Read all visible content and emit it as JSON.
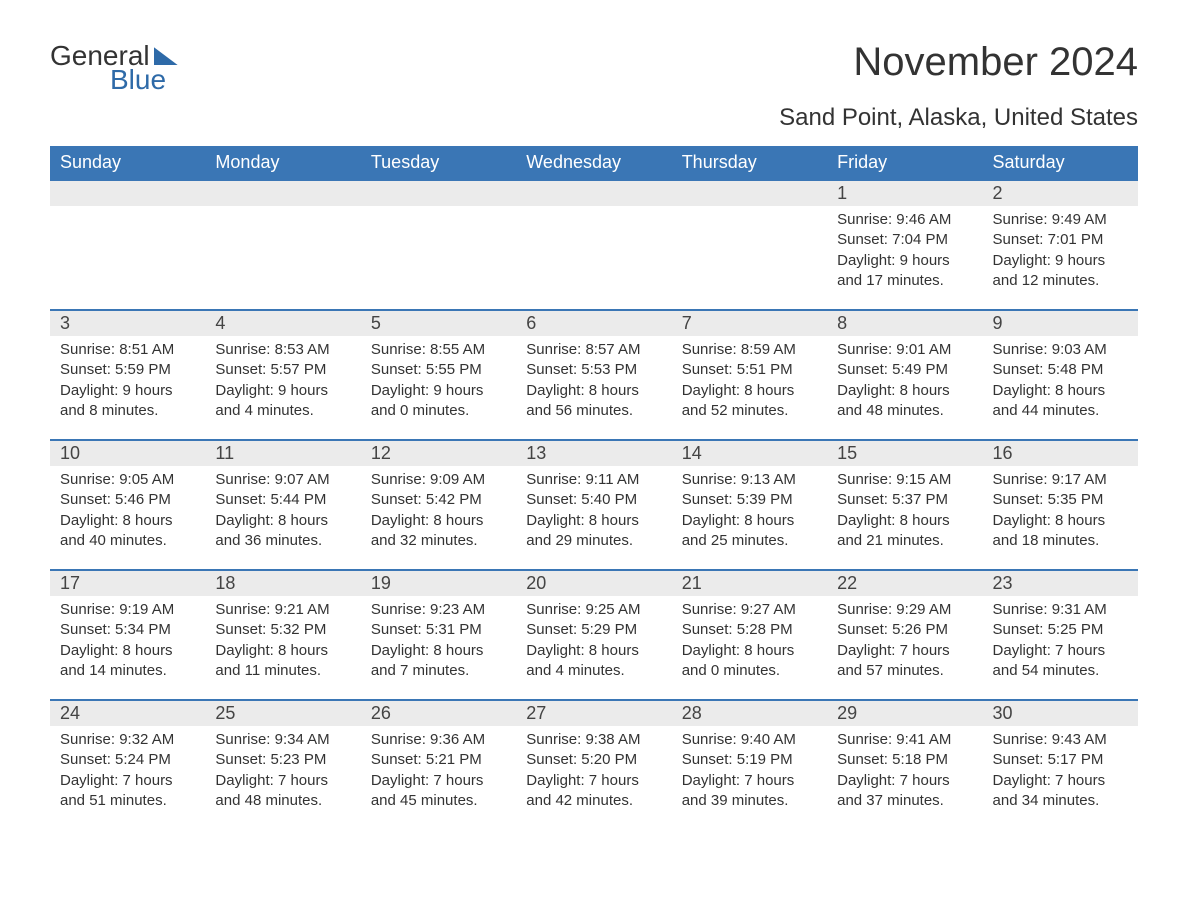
{
  "logo": {
    "text1": "General",
    "text2": "Blue",
    "accent_color": "#2e6aa8"
  },
  "title": "November 2024",
  "location": "Sand Point, Alaska, United States",
  "header_bg": "#3a76b5",
  "header_fg": "#ffffff",
  "daynum_bg": "#ebebeb",
  "row_border": "#3a76b5",
  "daylabels": [
    "Sunday",
    "Monday",
    "Tuesday",
    "Wednesday",
    "Thursday",
    "Friday",
    "Saturday"
  ],
  "weeks": [
    [
      null,
      null,
      null,
      null,
      null,
      {
        "n": "1",
        "sr": "9:46 AM",
        "ss": "7:04 PM",
        "dh": "9",
        "dm": "17"
      },
      {
        "n": "2",
        "sr": "9:49 AM",
        "ss": "7:01 PM",
        "dh": "9",
        "dm": "12"
      }
    ],
    [
      {
        "n": "3",
        "sr": "8:51 AM",
        "ss": "5:59 PM",
        "dh": "9",
        "dm": "8"
      },
      {
        "n": "4",
        "sr": "8:53 AM",
        "ss": "5:57 PM",
        "dh": "9",
        "dm": "4"
      },
      {
        "n": "5",
        "sr": "8:55 AM",
        "ss": "5:55 PM",
        "dh": "9",
        "dm": "0"
      },
      {
        "n": "6",
        "sr": "8:57 AM",
        "ss": "5:53 PM",
        "dh": "8",
        "dm": "56"
      },
      {
        "n": "7",
        "sr": "8:59 AM",
        "ss": "5:51 PM",
        "dh": "8",
        "dm": "52"
      },
      {
        "n": "8",
        "sr": "9:01 AM",
        "ss": "5:49 PM",
        "dh": "8",
        "dm": "48"
      },
      {
        "n": "9",
        "sr": "9:03 AM",
        "ss": "5:48 PM",
        "dh": "8",
        "dm": "44"
      }
    ],
    [
      {
        "n": "10",
        "sr": "9:05 AM",
        "ss": "5:46 PM",
        "dh": "8",
        "dm": "40"
      },
      {
        "n": "11",
        "sr": "9:07 AM",
        "ss": "5:44 PM",
        "dh": "8",
        "dm": "36"
      },
      {
        "n": "12",
        "sr": "9:09 AM",
        "ss": "5:42 PM",
        "dh": "8",
        "dm": "32"
      },
      {
        "n": "13",
        "sr": "9:11 AM",
        "ss": "5:40 PM",
        "dh": "8",
        "dm": "29"
      },
      {
        "n": "14",
        "sr": "9:13 AM",
        "ss": "5:39 PM",
        "dh": "8",
        "dm": "25"
      },
      {
        "n": "15",
        "sr": "9:15 AM",
        "ss": "5:37 PM",
        "dh": "8",
        "dm": "21"
      },
      {
        "n": "16",
        "sr": "9:17 AM",
        "ss": "5:35 PM",
        "dh": "8",
        "dm": "18"
      }
    ],
    [
      {
        "n": "17",
        "sr": "9:19 AM",
        "ss": "5:34 PM",
        "dh": "8",
        "dm": "14"
      },
      {
        "n": "18",
        "sr": "9:21 AM",
        "ss": "5:32 PM",
        "dh": "8",
        "dm": "11"
      },
      {
        "n": "19",
        "sr": "9:23 AM",
        "ss": "5:31 PM",
        "dh": "8",
        "dm": "7"
      },
      {
        "n": "20",
        "sr": "9:25 AM",
        "ss": "5:29 PM",
        "dh": "8",
        "dm": "4"
      },
      {
        "n": "21",
        "sr": "9:27 AM",
        "ss": "5:28 PM",
        "dh": "8",
        "dm": "0"
      },
      {
        "n": "22",
        "sr": "9:29 AM",
        "ss": "5:26 PM",
        "dh": "7",
        "dm": "57"
      },
      {
        "n": "23",
        "sr": "9:31 AM",
        "ss": "5:25 PM",
        "dh": "7",
        "dm": "54"
      }
    ],
    [
      {
        "n": "24",
        "sr": "9:32 AM",
        "ss": "5:24 PM",
        "dh": "7",
        "dm": "51"
      },
      {
        "n": "25",
        "sr": "9:34 AM",
        "ss": "5:23 PM",
        "dh": "7",
        "dm": "48"
      },
      {
        "n": "26",
        "sr": "9:36 AM",
        "ss": "5:21 PM",
        "dh": "7",
        "dm": "45"
      },
      {
        "n": "27",
        "sr": "9:38 AM",
        "ss": "5:20 PM",
        "dh": "7",
        "dm": "42"
      },
      {
        "n": "28",
        "sr": "9:40 AM",
        "ss": "5:19 PM",
        "dh": "7",
        "dm": "39"
      },
      {
        "n": "29",
        "sr": "9:41 AM",
        "ss": "5:18 PM",
        "dh": "7",
        "dm": "37"
      },
      {
        "n": "30",
        "sr": "9:43 AM",
        "ss": "5:17 PM",
        "dh": "7",
        "dm": "34"
      }
    ]
  ],
  "labels": {
    "sunrise": "Sunrise:",
    "sunset": "Sunset:",
    "daylight": "Daylight:",
    "hours": "hours",
    "and": "and",
    "minutes": "minutes."
  }
}
